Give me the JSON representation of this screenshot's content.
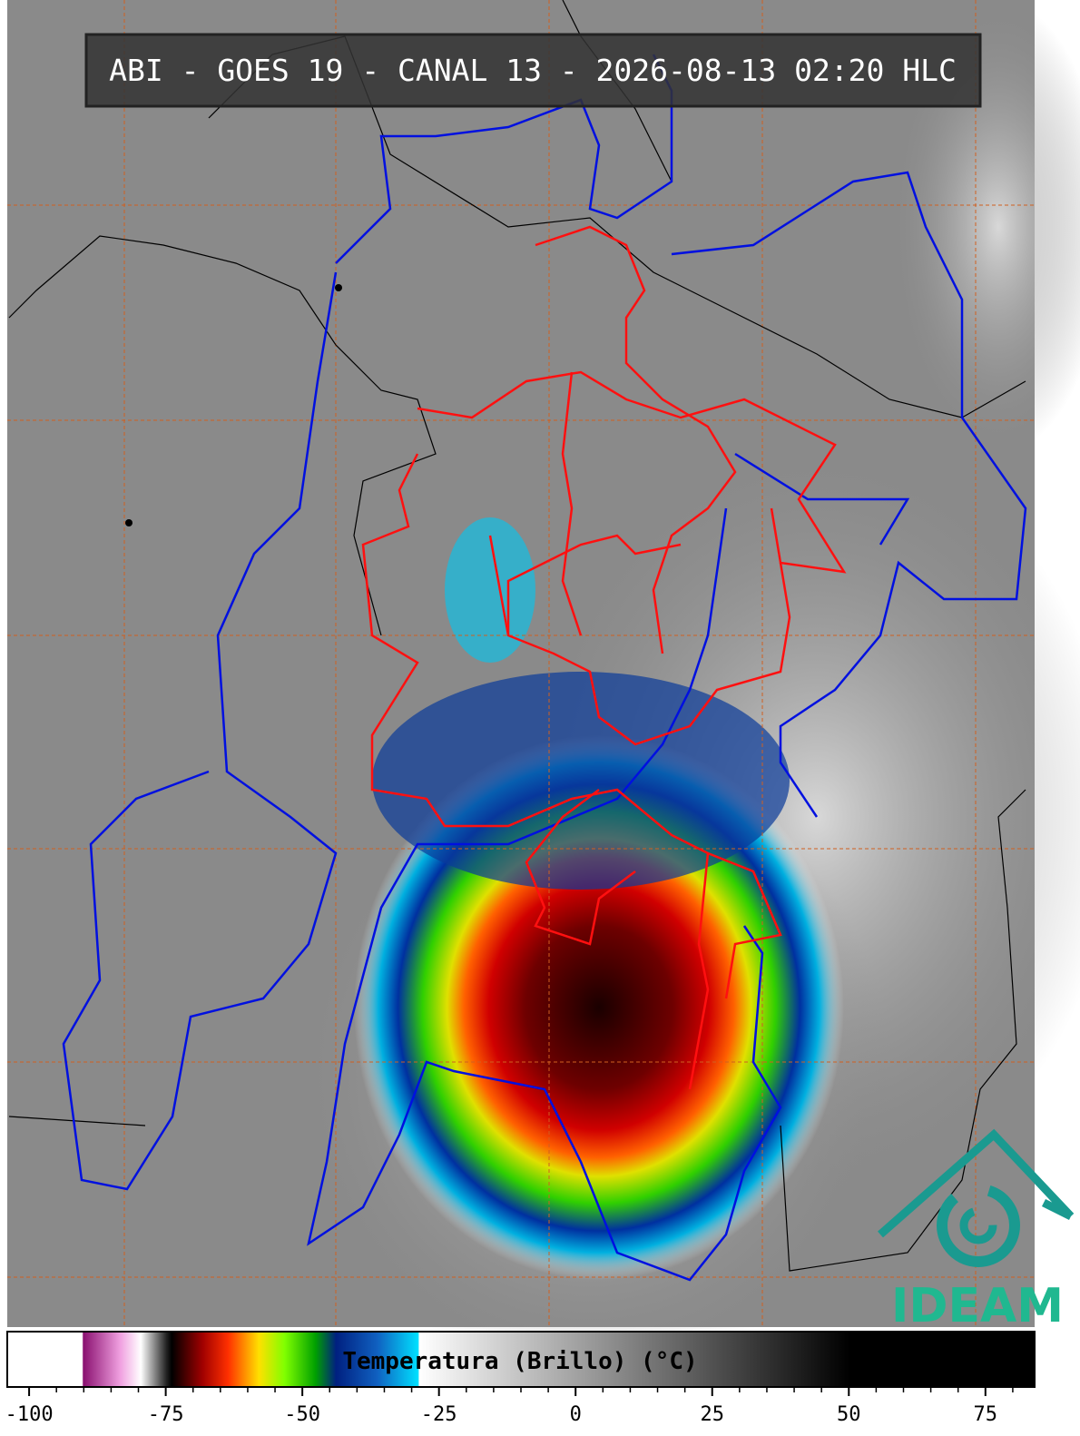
{
  "header": {
    "title": "ABI - GOES 19 - CANAL 13 - 2026-08-13 02:20 HLC"
  },
  "logo": {
    "text": "IDEAM"
  },
  "colorbar": {
    "label": "Temperatura (Brillo) (°C)",
    "xlim": [
      -104,
      84
    ],
    "ticks": [
      -100,
      -75,
      -50,
      -25,
      0,
      25,
      50,
      75
    ],
    "minor_ticks": [
      -95,
      -90,
      -85,
      -80,
      -70,
      -65,
      -60,
      -55,
      -45,
      -40,
      -35,
      -30,
      -20,
      -15,
      -10,
      -5,
      5,
      10,
      15,
      20,
      30,
      35,
      40,
      45,
      55,
      60,
      65,
      70,
      80
    ]
  }
}
